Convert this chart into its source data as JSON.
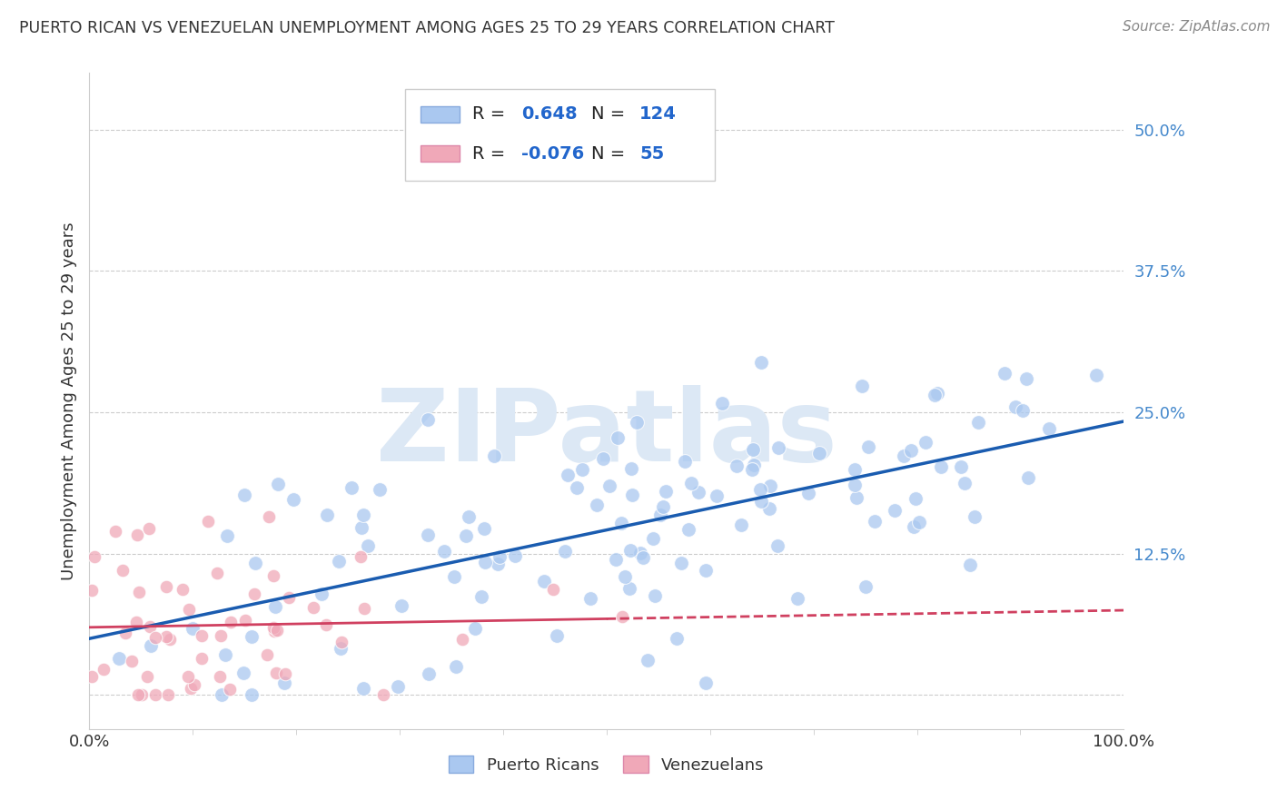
{
  "title": "PUERTO RICAN VS VENEZUELAN UNEMPLOYMENT AMONG AGES 25 TO 29 YEARS CORRELATION CHART",
  "source": "Source: ZipAtlas.com",
  "ylabel": "Unemployment Among Ages 25 to 29 years",
  "xlim": [
    0.0,
    1.0
  ],
  "ylim": [
    -0.03,
    0.55
  ],
  "yticks": [
    0.0,
    0.125,
    0.25,
    0.375,
    0.5
  ],
  "ytick_labels": [
    "",
    "12.5%",
    "25.0%",
    "37.5%",
    "50.0%"
  ],
  "pr_R": 0.648,
  "pr_N": 124,
  "vz_R": -0.076,
  "vz_N": 55,
  "pr_color": "#aac8f0",
  "vz_color": "#f0a8b8",
  "pr_line_color": "#1a5cb0",
  "vz_line_color": "#d04060",
  "watermark_color": "#dce8f5",
  "background_color": "#ffffff",
  "grid_color": "#cccccc",
  "title_fontsize": 12.5,
  "axis_label_color": "#4488cc",
  "seed": 12
}
